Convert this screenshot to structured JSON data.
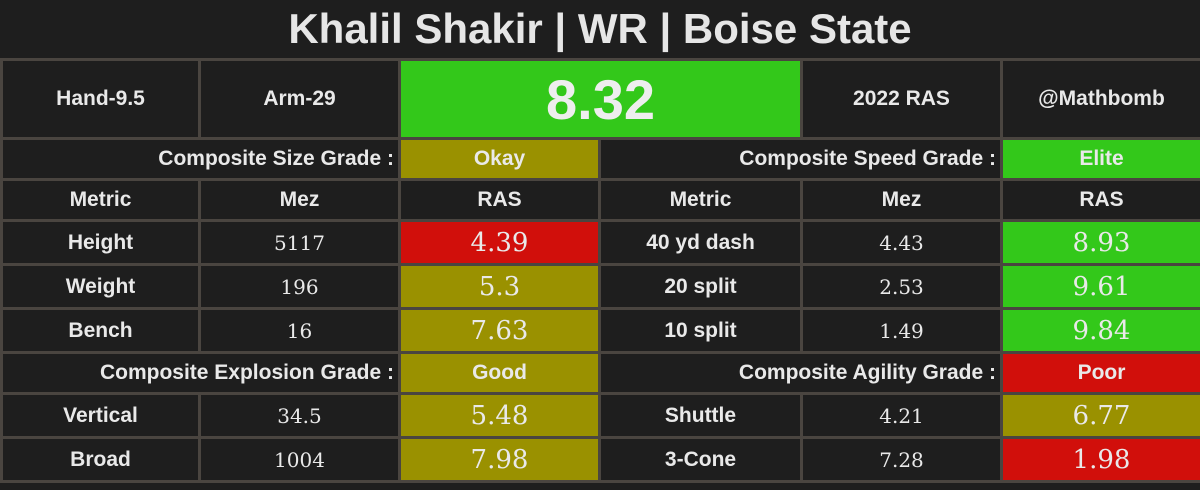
{
  "title": "Khalil Shakir | WR | Boise State",
  "header": {
    "hand": "Hand-9.5",
    "arm": "Arm-29",
    "ras_score": "8.32",
    "year_label": "2022 RAS",
    "handle": "@Mathbomb"
  },
  "size": {
    "grade_label": "Composite Size Grade :",
    "grade": "Okay",
    "grade_color": "#9a9100"
  },
  "speed": {
    "grade_label": "Composite Speed Grade :",
    "grade": "Elite",
    "grade_color": "#33c81a"
  },
  "explosion": {
    "grade_label": "Composite Explosion Grade :",
    "grade": "Good",
    "grade_color": "#9a9100"
  },
  "agility": {
    "grade_label": "Composite Agility Grade :",
    "grade": "Poor",
    "grade_color": "#d10f0b"
  },
  "columns": {
    "metric": "Metric",
    "mez": "Mez",
    "ras": "RAS"
  },
  "metrics": {
    "height": {
      "label": "Height",
      "mez": "5117",
      "ras": "4.39"
    },
    "weight": {
      "label": "Weight",
      "mez": "196",
      "ras": "5.3"
    },
    "bench": {
      "label": "Bench",
      "mez": "16",
      "ras": "7.63"
    },
    "dash40": {
      "label": "40 yd dash",
      "mez": "4.43",
      "ras": "8.93"
    },
    "split20": {
      "label": "20 split",
      "mez": "2.53",
      "ras": "9.61"
    },
    "split10": {
      "label": "10 split",
      "mez": "1.49",
      "ras": "9.84"
    },
    "vertical": {
      "label": "Vertical",
      "mez": "34.5",
      "ras": "5.48"
    },
    "broad": {
      "label": "Broad",
      "mez": "1004",
      "ras": "7.98"
    },
    "shuttle": {
      "label": "Shuttle",
      "mez": "4.21",
      "ras": "6.77"
    },
    "cone3": {
      "label": "3-Cone",
      "mez": "7.28",
      "ras": "1.98"
    }
  },
  "colors": {
    "elite": "#33c81a",
    "okay": "#9a9100",
    "poor": "#d10f0b",
    "background": "#1e1e1e",
    "border": "#4a4540"
  }
}
